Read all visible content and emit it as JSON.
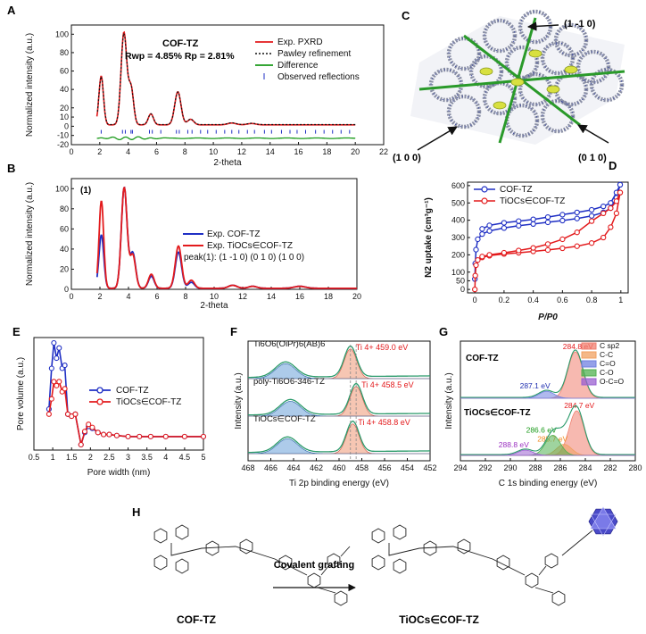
{
  "panels": {
    "A": {
      "label": "A",
      "title": "COF-TZ",
      "stats": "Rwp = 4.85% Rp = 2.81%",
      "xlabel": "2-theta",
      "ylabel": "Normalized intensity (a.u.)",
      "legend": [
        "Exp. PXRD",
        "Pawley refinement",
        "Difference",
        "Observed reflections"
      ]
    },
    "B": {
      "label": "B",
      "xlabel": "2-theta",
      "ylabel": "Normalized intensity (a.u.)",
      "peak_label": "(1)",
      "legend": [
        "Exp. COF-TZ",
        "Exp. TiOCs∈COF-TZ"
      ],
      "note": "peak(1): (1 -1 0) (0 1 0) (1 0 0)"
    },
    "C": {
      "label": "C",
      "arrows": [
        "(1 -1 0)",
        "(1 0 0)",
        "(0 1 0)"
      ]
    },
    "D": {
      "label": "D",
      "xlabel": "P/P0",
      "ylabel": "N2 uptake (cm³g⁻¹)",
      "legend": [
        "COF-TZ",
        "TiOCs∈COF-TZ"
      ]
    },
    "E": {
      "label": "E",
      "xlabel": "Pore width (nm)",
      "ylabel": "Pore volume (a.u.)",
      "legend": [
        "COF-TZ",
        "TiOCs∈COF-TZ"
      ]
    },
    "F": {
      "label": "F",
      "xlabel": "Ti 2p binding energy (eV)",
      "ylabel": "Intensity (a.u.)",
      "traces": [
        {
          "name": "Ti6O6(OiPr)6(AB)6",
          "peak": "Ti 4+ 459.0 eV"
        },
        {
          "name": "poly-Ti6O6-346-TZ",
          "peak": "Ti 4+ 458.5 eV"
        },
        {
          "name": "TiOCs∈COF-TZ",
          "peak": "Ti 4+ 458.8 eV"
        }
      ]
    },
    "G": {
      "label": "G",
      "xlabel": "C 1s binding energy (eV)",
      "ylabel": "Intensity (a.u.)",
      "legend": [
        "C sp2",
        "C-C",
        "C=O",
        "C-O",
        "O-C=O"
      ],
      "top": {
        "name": "COF-TZ",
        "peaks": [
          "284.8 eV",
          "287.1 eV"
        ]
      },
      "bottom": {
        "name": "TiOCs∈COF-TZ",
        "peaks": [
          "284.7 eV",
          "285.7 eV",
          "286.6 eV",
          "288.8 eV"
        ]
      }
    },
    "H": {
      "label": "H",
      "left_name": "COF-TZ",
      "arrow_label": "Covalent grafting",
      "right_name": "TiOCs∈COF-TZ"
    }
  },
  "colors": {
    "red": "#e31a1c",
    "blue": "#1f2fc4",
    "green": "#1a9a1a",
    "grey": "#888888",
    "sp2": "#f08070",
    "cc": "#f0a060",
    "co2": "#7080e0",
    "co": "#50b050",
    "ocoo": "#9a60d0"
  },
  "chart_data": [
    {
      "id": "A",
      "type": "line",
      "title": "COF-TZ",
      "xlabel": "2-theta",
      "ylabel": "Normalized intensity (a.u.)",
      "xlim": [
        0,
        22
      ],
      "ylim": [
        -20,
        110
      ],
      "xticks": [
        0,
        2,
        4,
        6,
        8,
        10,
        12,
        14,
        16,
        18,
        20,
        22
      ],
      "yticks": [
        -20,
        -10,
        0,
        10,
        20,
        30,
        40,
        50,
        60,
        70,
        80,
        90,
        100,
        110
      ],
      "peaks": [
        [
          2.1,
          53,
          0.16
        ],
        [
          3.7,
          100,
          0.2
        ],
        [
          4.2,
          40,
          0.18
        ],
        [
          5.6,
          12,
          0.18
        ],
        [
          7.5,
          36,
          0.22
        ],
        [
          8.4,
          6,
          0.22
        ],
        [
          11.3,
          2,
          0.3
        ],
        [
          12.7,
          1.5,
          0.3
        ]
      ],
      "difference_offset": -13,
      "reflections": [
        2.1,
        3.6,
        3.8,
        4.2,
        4.3,
        5.5,
        5.7,
        6.3,
        7.4,
        7.6,
        8.2,
        8.5,
        9.1,
        9.6,
        10.2,
        10.8,
        11.3,
        11.8,
        12.4,
        12.9,
        13.6,
        14.1,
        14.8,
        15.4,
        15.9,
        16.5,
        17.2,
        17.8,
        18.4,
        19.0,
        19.6
      ],
      "series": [
        {
          "name": "Exp. PXRD"
        },
        {
          "name": "Pawley refinement"
        },
        {
          "name": "Difference"
        },
        {
          "name": "Observed reflections"
        }
      ]
    },
    {
      "id": "B",
      "type": "line",
      "xlabel": "2-theta",
      "ylabel": "Normalized intensity (a.u.)",
      "xlim": [
        0,
        20
      ],
      "ylim": [
        0,
        110
      ],
      "xticks": [
        0,
        2,
        4,
        6,
        8,
        10,
        12,
        14,
        16,
        18,
        20
      ],
      "yticks": [
        0,
        10,
        20,
        30,
        40,
        50,
        60,
        70,
        80,
        90,
        100
      ],
      "series": [
        {
          "name": "Exp. COF-TZ",
          "peaks": [
            [
              2.1,
              53,
              0.17
            ],
            [
              3.7,
              100,
              0.2
            ],
            [
              4.3,
              35,
              0.2
            ],
            [
              5.6,
              12,
              0.2
            ],
            [
              7.5,
              36,
              0.22
            ],
            [
              8.4,
              6,
              0.22
            ],
            [
              11.3,
              3,
              0.3
            ],
            [
              12.7,
              2,
              0.3
            ],
            [
              16.0,
              2,
              0.4
            ]
          ]
        },
        {
          "name": "Exp. TiOCs∈COF-TZ",
          "peaks": [
            [
              2.1,
              87,
              0.16
            ],
            [
              3.7,
              100,
              0.2
            ],
            [
              4.3,
              33,
              0.2
            ],
            [
              5.6,
              14,
              0.2
            ],
            [
              7.5,
              42,
              0.22
            ],
            [
              8.4,
              8,
              0.22
            ],
            [
              11.3,
              3,
              0.3
            ],
            [
              12.7,
              2,
              0.3
            ],
            [
              16.0,
              2,
              0.4
            ]
          ]
        }
      ]
    },
    {
      "id": "D",
      "type": "line",
      "xlabel": "P/P0",
      "ylabel": "N2 uptake (cm3 g-1)",
      "xlim": [
        -0.05,
        1.05
      ],
      "ylim": [
        -20,
        620
      ],
      "xticks": [
        0.0,
        0.2,
        0.4,
        0.6,
        0.8,
        1.0
      ],
      "yticks": [
        0,
        50,
        100,
        150,
        200,
        250,
        300,
        350,
        400,
        450,
        500,
        550,
        600
      ],
      "series": [
        {
          "name": "COF-TZ",
          "adsorption": [
            [
              0.0,
              60
            ],
            [
              0.003,
              150
            ],
            [
              0.008,
              230
            ],
            [
              0.02,
              290
            ],
            [
              0.05,
              320
            ],
            [
              0.1,
              338
            ],
            [
              0.2,
              355
            ],
            [
              0.3,
              368
            ],
            [
              0.4,
              378
            ],
            [
              0.5,
              388
            ],
            [
              0.6,
              398
            ],
            [
              0.7,
              410
            ],
            [
              0.8,
              425
            ],
            [
              0.88,
              445
            ],
            [
              0.93,
              470
            ],
            [
              0.97,
              530
            ],
            [
              0.995,
              605
            ]
          ],
          "desorption": [
            [
              0.995,
              605
            ],
            [
              0.97,
              560
            ],
            [
              0.93,
              500
            ],
            [
              0.88,
              480
            ],
            [
              0.8,
              460
            ],
            [
              0.7,
              445
            ],
            [
              0.6,
              432
            ],
            [
              0.5,
              418
            ],
            [
              0.4,
              405
            ],
            [
              0.3,
              395
            ],
            [
              0.2,
              385
            ],
            [
              0.1,
              370
            ],
            [
              0.05,
              350
            ]
          ]
        },
        {
          "name": "TiOCs∈COF-TZ",
          "adsorption": [
            [
              0.0,
              0
            ],
            [
              0.003,
              80
            ],
            [
              0.008,
              140
            ],
            [
              0.02,
              170
            ],
            [
              0.05,
              185
            ],
            [
              0.1,
              195
            ],
            [
              0.2,
              205
            ],
            [
              0.3,
              212
            ],
            [
              0.4,
              220
            ],
            [
              0.5,
              228
            ],
            [
              0.6,
              238
            ],
            [
              0.7,
              250
            ],
            [
              0.8,
              268
            ],
            [
              0.88,
              300
            ],
            [
              0.93,
              360
            ],
            [
              0.97,
              440
            ],
            [
              0.995,
              560
            ]
          ],
          "desorption": [
            [
              0.995,
              560
            ],
            [
              0.97,
              510
            ],
            [
              0.93,
              470
            ],
            [
              0.88,
              440
            ],
            [
              0.8,
              395
            ],
            [
              0.7,
              330
            ],
            [
              0.6,
              290
            ],
            [
              0.5,
              262
            ],
            [
              0.4,
              240
            ],
            [
              0.3,
              225
            ],
            [
              0.2,
              212
            ],
            [
              0.1,
              200
            ],
            [
              0.05,
              190
            ]
          ]
        }
      ]
    },
    {
      "id": "E",
      "type": "line",
      "xlabel": "Pore width (nm)",
      "ylabel": "Pore volume (a.u.)",
      "xlim": [
        0.5,
        5.0
      ],
      "xticks": [
        0.5,
        1.0,
        1.5,
        2.0,
        2.5,
        3.0,
        3.5,
        4.0,
        4.5,
        5.0
      ],
      "series": [
        {
          "name": "COF-TZ",
          "points": [
            [
              0.9,
              0.35
            ],
            [
              0.97,
              0.75
            ],
            [
              1.03,
              1.0
            ],
            [
              1.1,
              0.85
            ],
            [
              1.17,
              0.95
            ],
            [
              1.25,
              0.75
            ],
            [
              1.32,
              0.78
            ],
            [
              1.4,
              0.3
            ],
            [
              1.5,
              0.28
            ],
            [
              1.6,
              0.3
            ],
            [
              1.75,
              0.0
            ],
            [
              1.85,
              0.12
            ],
            [
              1.95,
              0.18
            ],
            [
              2.05,
              0.16
            ],
            [
              2.2,
              0.12
            ],
            [
              2.35,
              0.1
            ],
            [
              2.5,
              0.1
            ],
            [
              2.7,
              0.09
            ],
            [
              3.0,
              0.08
            ],
            [
              3.3,
              0.08
            ],
            [
              3.6,
              0.08
            ],
            [
              4.0,
              0.08
            ],
            [
              4.5,
              0.08
            ],
            [
              5.0,
              0.08
            ]
          ]
        },
        {
          "name": "TiOCs∈COF-TZ",
          "points": [
            [
              0.9,
              0.3
            ],
            [
              0.97,
              0.45
            ],
            [
              1.03,
              0.62
            ],
            [
              1.1,
              0.58
            ],
            [
              1.17,
              0.62
            ],
            [
              1.25,
              0.52
            ],
            [
              1.32,
              0.55
            ],
            [
              1.4,
              0.3
            ],
            [
              1.5,
              0.28
            ],
            [
              1.6,
              0.3
            ],
            [
              1.75,
              0.0
            ],
            [
              1.85,
              0.13
            ],
            [
              1.95,
              0.2
            ],
            [
              2.05,
              0.17
            ],
            [
              2.2,
              0.12
            ],
            [
              2.35,
              0.1
            ],
            [
              2.5,
              0.1
            ],
            [
              2.7,
              0.09
            ],
            [
              3.0,
              0.08
            ],
            [
              3.3,
              0.08
            ],
            [
              3.6,
              0.08
            ],
            [
              4.0,
              0.08
            ],
            [
              4.5,
              0.08
            ],
            [
              5.0,
              0.08
            ]
          ]
        }
      ]
    },
    {
      "id": "F",
      "type": "line",
      "xlabel": "Ti 2p binding energy (eV)",
      "ylabel": "Intensity (a.u.)",
      "xlim": [
        468,
        452
      ],
      "xticks": [
        468,
        466,
        464,
        462,
        460,
        458,
        456,
        454,
        452
      ],
      "series": [
        {
          "name": "Ti6O6(OiPr)6(AB)6",
          "peak_eV": 459.0,
          "satellite_eV": 464.7
        },
        {
          "name": "poly-Ti6O6-346-TZ",
          "peak_eV": 458.5,
          "satellite_eV": 464.4
        },
        {
          "name": "TiOCs∈COF-TZ",
          "peak_eV": 458.8,
          "satellite_eV": 464.6
        }
      ]
    },
    {
      "id": "G",
      "type": "area",
      "xlabel": "C 1s binding energy (eV)",
      "ylabel": "Intensity (a.u.)",
      "xlim": [
        294,
        280
      ],
      "xticks": [
        294,
        292,
        290,
        288,
        286,
        284,
        282,
        280
      ],
      "series": [
        {
          "name": "COF-TZ",
          "components": [
            {
              "name": "C sp2",
              "center": 284.8,
              "height": 1.0
            },
            {
              "name": "C=O",
              "center": 287.1,
              "height": 0.15
            }
          ]
        },
        {
          "name": "TiOCs∈COF-TZ",
          "components": [
            {
              "name": "C sp2",
              "center": 284.7,
              "height": 1.0
            },
            {
              "name": "C-C",
              "center": 285.7,
              "height": 0.25
            },
            {
              "name": "C-O",
              "center": 286.6,
              "height": 0.45
            },
            {
              "name": "O-C=O",
              "center": 288.8,
              "height": 0.12
            }
          ]
        }
      ]
    }
  ]
}
